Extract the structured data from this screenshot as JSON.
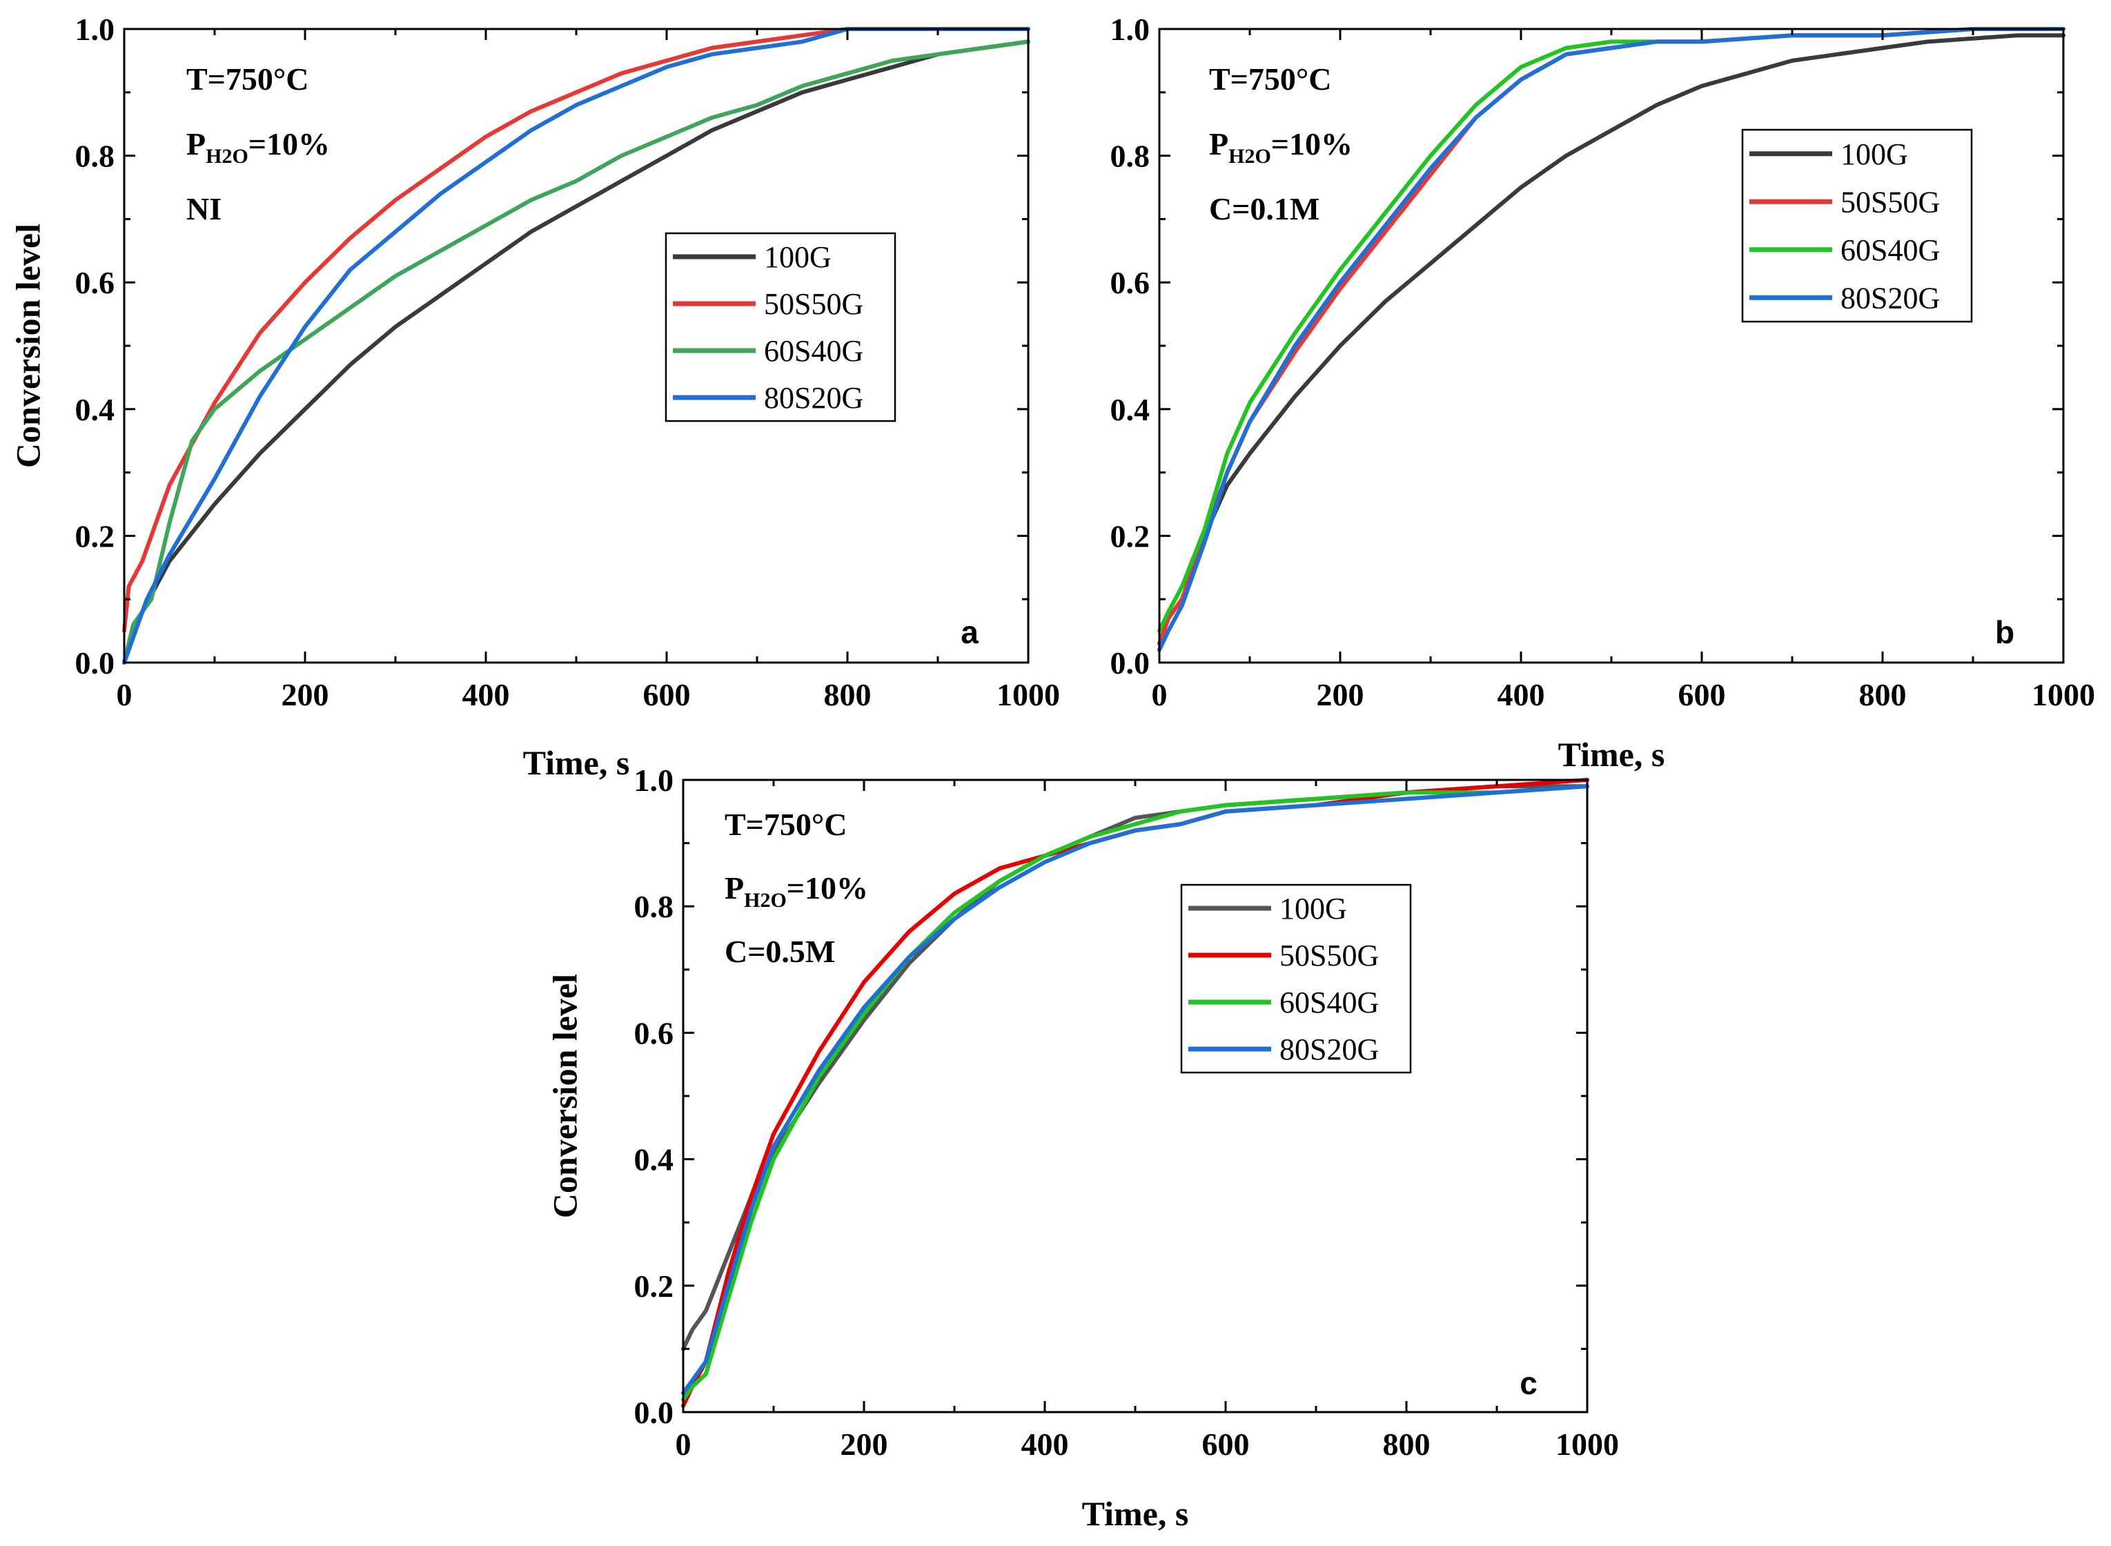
{
  "figure": {
    "series_colors": {
      "100G": "#3a3a3a",
      "50S50G": "#e53935",
      "60S40G_a": "#3fa55a",
      "60S40G": "#22c322",
      "80S20G": "#1f6fd6"
    }
  },
  "chart_data": [
    {
      "type": "line",
      "panel": "a",
      "xlabel": "Time, s",
      "ylabel": "Conversion level",
      "xlim": [
        0,
        1000
      ],
      "ylim": [
        0,
        1.0
      ],
      "xticks": [
        0,
        200,
        400,
        600,
        800,
        1000
      ],
      "yticks": [
        0.0,
        0.2,
        0.4,
        0.6,
        0.8,
        1.0
      ],
      "xtick_labels": [
        "0",
        "200",
        "400",
        "600",
        "800",
        "1000"
      ],
      "ytick_labels": [
        "0.0",
        "0.2",
        "0.4",
        "0.6",
        "0.8",
        "1.0"
      ],
      "annotation": {
        "line1": "T=750°C",
        "line2_main": "P",
        "line2_sub": "H2O",
        "line2_rest": "=10%",
        "line3": "NI"
      },
      "legend_position": "center-right",
      "series": [
        {
          "name": "100G",
          "color": "#3a3a3a",
          "x": [
            0,
            20,
            50,
            100,
            150,
            200,
            250,
            300,
            350,
            400,
            450,
            500,
            550,
            600,
            650,
            700,
            750,
            800,
            850,
            900,
            950,
            1000
          ],
          "y": [
            0.0,
            0.08,
            0.16,
            0.25,
            0.33,
            0.4,
            0.47,
            0.53,
            0.58,
            0.63,
            0.68,
            0.72,
            0.76,
            0.8,
            0.84,
            0.87,
            0.9,
            0.92,
            0.94,
            0.96,
            0.97,
            0.98
          ]
        },
        {
          "name": "50S50G",
          "color": "#e53935",
          "x": [
            0,
            5,
            20,
            50,
            100,
            150,
            200,
            250,
            300,
            350,
            400,
            450,
            500,
            550,
            600,
            650,
            700,
            750,
            800,
            850,
            900,
            950,
            1000
          ],
          "y": [
            0.05,
            0.12,
            0.16,
            0.28,
            0.41,
            0.52,
            0.6,
            0.67,
            0.73,
            0.78,
            0.83,
            0.87,
            0.9,
            0.93,
            0.95,
            0.97,
            0.98,
            0.99,
            1.0,
            1.0,
            1.0,
            1.0,
            1.0
          ]
        },
        {
          "name": "60S40G",
          "color": "#3fa55a",
          "x": [
            0,
            10,
            30,
            50,
            75,
            100,
            150,
            200,
            250,
            300,
            350,
            400,
            450,
            500,
            550,
            600,
            650,
            700,
            750,
            800,
            850,
            900,
            950,
            1000
          ],
          "y": [
            0.0,
            0.06,
            0.1,
            0.22,
            0.35,
            0.4,
            0.46,
            0.51,
            0.56,
            0.61,
            0.65,
            0.69,
            0.73,
            0.76,
            0.8,
            0.83,
            0.86,
            0.88,
            0.91,
            0.93,
            0.95,
            0.96,
            0.97,
            0.98
          ]
        },
        {
          "name": "80S20G",
          "color": "#1f6fd6",
          "x": [
            0,
            25,
            50,
            100,
            150,
            200,
            250,
            300,
            350,
            400,
            450,
            500,
            550,
            600,
            650,
            700,
            750,
            800,
            850,
            900,
            950,
            1000
          ],
          "y": [
            0.0,
            0.1,
            0.17,
            0.29,
            0.42,
            0.53,
            0.62,
            0.68,
            0.74,
            0.79,
            0.84,
            0.88,
            0.91,
            0.94,
            0.96,
            0.97,
            0.98,
            1.0,
            1.0,
            1.0,
            1.0,
            1.0
          ]
        }
      ]
    },
    {
      "type": "line",
      "panel": "b",
      "xlabel": "Time, s",
      "ylabel": "",
      "xlim": [
        0,
        1000
      ],
      "ylim": [
        0,
        1.0
      ],
      "xticks": [
        0,
        200,
        400,
        600,
        800,
        1000
      ],
      "yticks": [
        0.0,
        0.2,
        0.4,
        0.6,
        0.8,
        1.0
      ],
      "xtick_labels": [
        "0",
        "200",
        "400",
        "600",
        "800",
        "1000"
      ],
      "ytick_labels": [
        "0.0",
        "0.2",
        "0.4",
        "0.6",
        "0.8",
        "1.0"
      ],
      "annotation": {
        "line1": "T=750°C",
        "line2_main": "P",
        "line2_sub": "H2O",
        "line2_rest": "=10%",
        "line3": "C=0.1M"
      },
      "legend_position": "top-right",
      "series": [
        {
          "name": "100G",
          "color": "#3a3a3a",
          "x": [
            0,
            10,
            25,
            50,
            75,
            100,
            150,
            200,
            250,
            300,
            350,
            400,
            450,
            500,
            550,
            600,
            650,
            700,
            750,
            800,
            850,
            900,
            950,
            1000
          ],
          "y": [
            0.03,
            0.07,
            0.1,
            0.2,
            0.28,
            0.33,
            0.42,
            0.5,
            0.57,
            0.63,
            0.69,
            0.75,
            0.8,
            0.84,
            0.88,
            0.91,
            0.93,
            0.95,
            0.96,
            0.97,
            0.98,
            0.985,
            0.99,
            0.99
          ]
        },
        {
          "name": "50S50G",
          "color": "#e53935",
          "x": [
            0,
            10,
            25,
            50,
            75,
            100,
            150,
            200,
            250,
            300,
            350,
            400,
            450,
            500,
            550,
            600,
            700,
            800,
            900,
            1000
          ],
          "y": [
            0.03,
            0.07,
            0.1,
            0.2,
            0.3,
            0.38,
            0.49,
            0.59,
            0.68,
            0.77,
            0.86,
            0.92,
            0.96,
            0.97,
            0.98,
            0.98,
            0.99,
            0.99,
            1.0,
            1.0
          ]
        },
        {
          "name": "60S40G",
          "color": "#22c322",
          "x": [
            0,
            10,
            25,
            50,
            75,
            100,
            150,
            200,
            250,
            300,
            350,
            400,
            450,
            500,
            550,
            600,
            700,
            800,
            900,
            1000
          ],
          "y": [
            0.05,
            0.08,
            0.12,
            0.21,
            0.33,
            0.41,
            0.52,
            0.62,
            0.71,
            0.8,
            0.88,
            0.94,
            0.97,
            0.98,
            0.98,
            0.98,
            0.99,
            0.99,
            1.0,
            1.0
          ]
        },
        {
          "name": "80S20G",
          "color": "#1f6fd6",
          "x": [
            0,
            10,
            25,
            50,
            75,
            100,
            150,
            200,
            250,
            300,
            350,
            400,
            450,
            500,
            550,
            600,
            700,
            800,
            900,
            1000
          ],
          "y": [
            0.02,
            0.05,
            0.09,
            0.19,
            0.3,
            0.38,
            0.5,
            0.6,
            0.69,
            0.78,
            0.86,
            0.92,
            0.96,
            0.97,
            0.98,
            0.98,
            0.99,
            0.99,
            1.0,
            1.0
          ]
        }
      ]
    },
    {
      "type": "line",
      "panel": "c",
      "xlabel": "Time, s",
      "ylabel": "Conversion level",
      "xlim": [
        0,
        1000
      ],
      "ylim": [
        0,
        1.0
      ],
      "xticks": [
        0,
        200,
        400,
        600,
        800,
        1000
      ],
      "yticks": [
        0.0,
        0.2,
        0.4,
        0.6,
        0.8,
        1.0
      ],
      "xtick_labels": [
        "0",
        "200",
        "400",
        "600",
        "800",
        "1000"
      ],
      "ytick_labels": [
        "0.0",
        "0.2",
        "0.4",
        "0.6",
        "0.8",
        "1.0"
      ],
      "annotation": {
        "line1": "T=750°C",
        "line2_main": "P",
        "line2_sub": "H2O",
        "line2_rest": "=10%",
        "line3": "C=0.5M"
      },
      "legend_position": "center-right",
      "series": [
        {
          "name": "100G",
          "color": "#555555",
          "x": [
            0,
            10,
            25,
            50,
            75,
            100,
            150,
            200,
            250,
            300,
            350,
            400,
            450,
            500,
            550,
            600,
            700,
            800,
            900,
            1000
          ],
          "y": [
            0.1,
            0.13,
            0.16,
            0.25,
            0.34,
            0.41,
            0.52,
            0.62,
            0.71,
            0.78,
            0.84,
            0.88,
            0.91,
            0.94,
            0.95,
            0.96,
            0.97,
            0.98,
            0.99,
            0.99
          ]
        },
        {
          "name": "50S50G",
          "color": "#e60000",
          "x": [
            0,
            10,
            25,
            50,
            75,
            100,
            150,
            200,
            250,
            300,
            350,
            400,
            450,
            500,
            550,
            600,
            700,
            800,
            900,
            1000
          ],
          "y": [
            0.01,
            0.04,
            0.08,
            0.22,
            0.34,
            0.44,
            0.57,
            0.68,
            0.76,
            0.82,
            0.86,
            0.88,
            0.9,
            0.92,
            0.93,
            0.95,
            0.96,
            0.98,
            0.99,
            1.0
          ]
        },
        {
          "name": "60S40G",
          "color": "#22c322",
          "x": [
            0,
            10,
            25,
            50,
            75,
            100,
            150,
            200,
            250,
            300,
            350,
            400,
            450,
            500,
            550,
            600,
            700,
            800,
            900,
            1000
          ],
          "y": [
            0.02,
            0.04,
            0.06,
            0.18,
            0.3,
            0.4,
            0.53,
            0.63,
            0.72,
            0.79,
            0.84,
            0.88,
            0.91,
            0.93,
            0.95,
            0.96,
            0.97,
            0.98,
            0.98,
            0.99
          ]
        },
        {
          "name": "80S20G",
          "color": "#1f6fd6",
          "x": [
            0,
            10,
            25,
            50,
            75,
            100,
            150,
            200,
            250,
            300,
            350,
            400,
            450,
            500,
            550,
            600,
            700,
            800,
            900,
            1000
          ],
          "y": [
            0.03,
            0.05,
            0.08,
            0.2,
            0.32,
            0.42,
            0.54,
            0.64,
            0.72,
            0.78,
            0.83,
            0.87,
            0.9,
            0.92,
            0.93,
            0.95,
            0.96,
            0.97,
            0.98,
            0.99
          ]
        }
      ]
    }
  ]
}
